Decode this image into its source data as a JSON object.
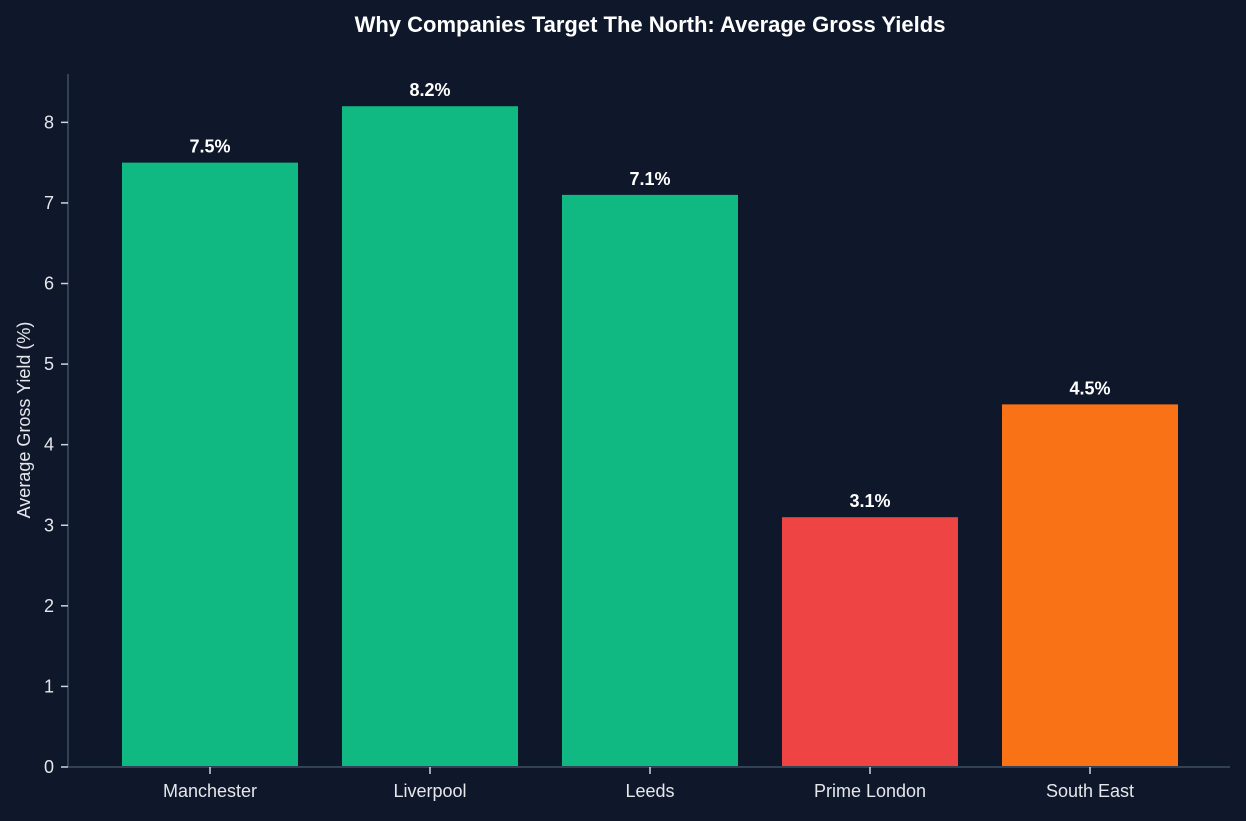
{
  "chart_data": {
    "type": "bar",
    "title": "Why Companies Target The North: Average Gross Yields",
    "xlabel": "",
    "ylabel": "Average Gross Yield (%)",
    "categories": [
      "Manchester",
      "Liverpool",
      "Leeds",
      "Prime London",
      "South East"
    ],
    "values": [
      7.5,
      8.2,
      7.1,
      3.1,
      4.5
    ],
    "data_labels": [
      "7.5%",
      "8.2%",
      "7.1%",
      "3.1%",
      "4.5%"
    ],
    "colors": [
      "#10b981",
      "#10b981",
      "#10b981",
      "#ef4444",
      "#f97316"
    ],
    "ylim": [
      0,
      8.6
    ],
    "yticks": [
      0,
      1,
      2,
      3,
      4,
      5,
      6,
      7,
      8
    ],
    "grid": false,
    "legend": "none",
    "background": "#0f172a",
    "axis_color": "#334155",
    "text_color": "#e5e7eb"
  }
}
